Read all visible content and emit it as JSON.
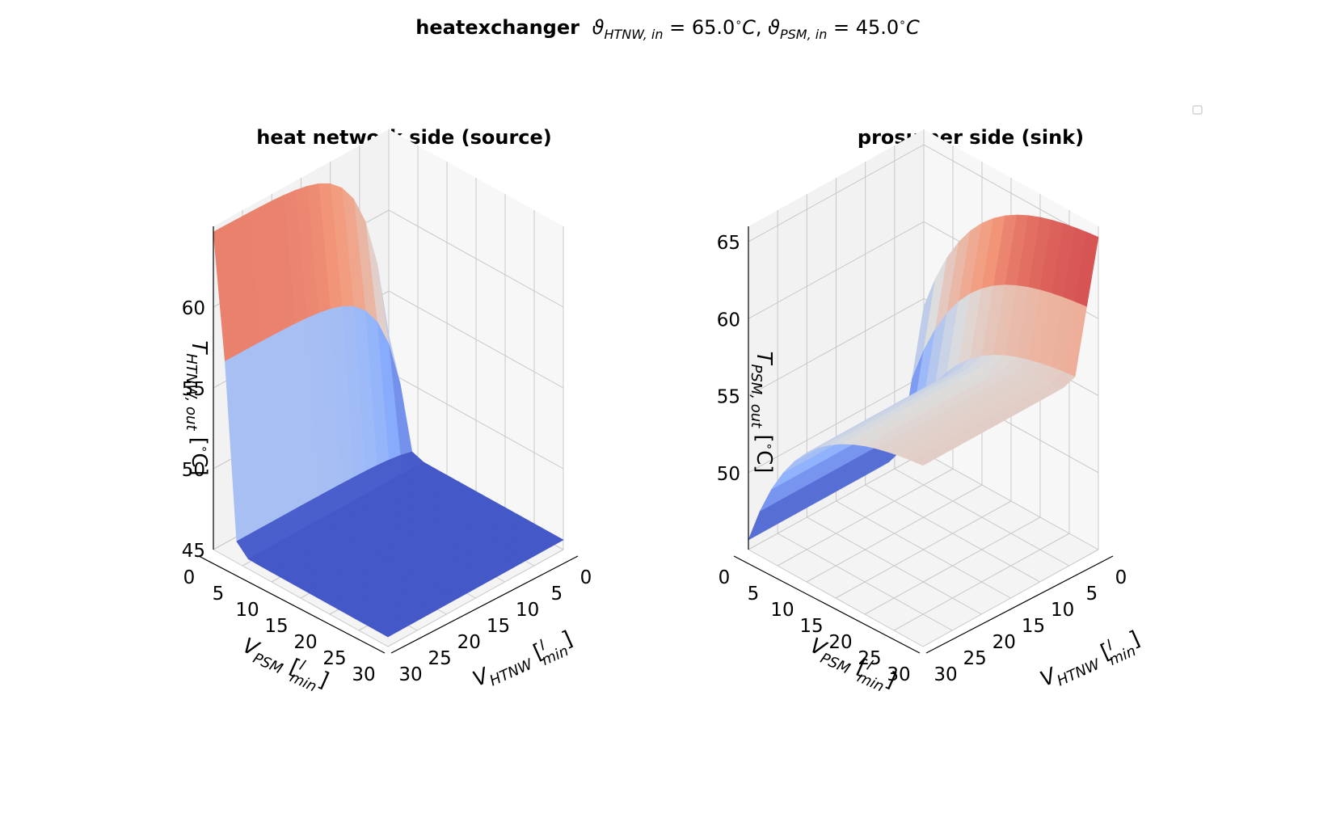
{
  "suptitle": {
    "bold": "heatexchanger",
    "rest": " ϑ_HTNW,in = 65.0°C, ϑ_PSM,in = 45.0°C",
    "theta_htnw_in": 65.0,
    "theta_psm_in": 45.0,
    "unit": "°C"
  },
  "legend": {
    "visible": true,
    "entries": []
  },
  "colormap": "coolwarm",
  "colors": {
    "cold": "#3b4cc0",
    "neutral": "#dddddd",
    "hot": "#b40426",
    "pane": "#ededed",
    "grid": "#c8c8c8"
  },
  "chart_data": [
    {
      "type": "surface",
      "title": "heat network side (source)",
      "xlabel": "V̇_HTNW [l/min]",
      "ylabel": "V̇_PSM [l/min]",
      "zlabel": "T_HTNW,out [°C]",
      "x_ticks": [
        0,
        5,
        10,
        15,
        20,
        25,
        30
      ],
      "y_ticks": [
        0,
        5,
        10,
        15,
        20,
        25,
        30
      ],
      "z_ticks": [
        45,
        50,
        55,
        60
      ],
      "xlim": [
        0,
        30
      ],
      "ylim": [
        0,
        30
      ],
      "zlim": [
        45,
        65
      ],
      "x": [
        0,
        2,
        4,
        6,
        8,
        10,
        12,
        14,
        16,
        18,
        20,
        22,
        24,
        26,
        28,
        30
      ],
      "y": [
        0,
        2,
        4,
        6,
        8,
        10,
        12,
        14,
        16,
        18,
        20,
        22,
        24,
        26,
        28,
        30
      ],
      "z_min": 45.0,
      "z_max": 64.4
    },
    {
      "type": "surface",
      "title": "prosumer side (sink)",
      "xlabel": "V̇_HTNW [l/min]",
      "ylabel": "V̇_PSM [l/min]",
      "zlabel": "T_PSM,out [°C]",
      "x_ticks": [
        0,
        5,
        10,
        15,
        20,
        25,
        30
      ],
      "y_ticks": [
        0,
        5,
        10,
        15,
        20,
        25,
        30
      ],
      "z_ticks": [
        50,
        55,
        60,
        65
      ],
      "xlim": [
        0,
        30
      ],
      "ylim": [
        0,
        30
      ],
      "zlim": [
        45,
        66
      ],
      "x": [
        0,
        2,
        4,
        6,
        8,
        10,
        12,
        14,
        16,
        18,
        20,
        22,
        24,
        26,
        28,
        30
      ],
      "y": [
        0,
        2,
        4,
        6,
        8,
        10,
        12,
        14,
        16,
        18,
        20,
        22,
        24,
        26,
        28,
        30
      ],
      "z_min": 45.5,
      "z_max": 65.2
    }
  ]
}
